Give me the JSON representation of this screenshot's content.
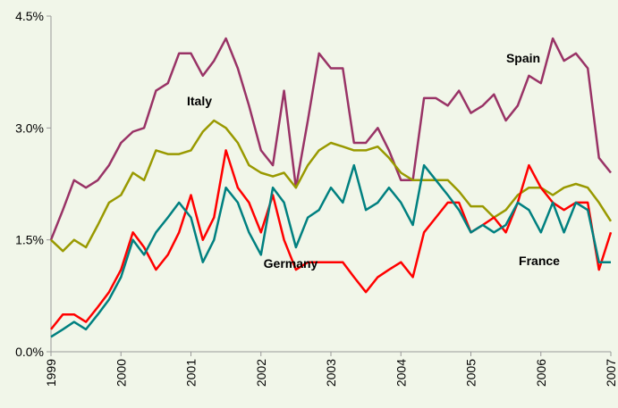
{
  "chart_data": {
    "type": "line",
    "x": [
      1999,
      1999.17,
      1999.33,
      1999.5,
      1999.67,
      1999.83,
      2000,
      2000.17,
      2000.33,
      2000.5,
      2000.67,
      2000.83,
      2001,
      2001.17,
      2001.33,
      2001.5,
      2001.67,
      2001.83,
      2002,
      2002.17,
      2002.33,
      2002.5,
      2002.67,
      2002.83,
      2003,
      2003.17,
      2003.33,
      2003.5,
      2003.67,
      2003.83,
      2004,
      2004.17,
      2004.33,
      2004.5,
      2004.67,
      2004.83,
      2005,
      2005.17,
      2005.33,
      2005.5,
      2005.67,
      2005.83,
      2006,
      2006.17,
      2006.33,
      2006.5,
      2006.67,
      2006.83,
      2007
    ],
    "xlim": [
      1999,
      2007
    ],
    "xticks": [
      1999,
      2000,
      2001,
      2002,
      2003,
      2004,
      2005,
      2006,
      2007
    ],
    "ylim": [
      0,
      4.5
    ],
    "yticks": [
      {
        "value": 0,
        "label": "0.0%"
      },
      {
        "value": 1.5,
        "label": "1.5%"
      },
      {
        "value": 3,
        "label": "3.0%"
      },
      {
        "value": 4.5,
        "label": "4.5%"
      }
    ],
    "grid": false,
    "series": [
      {
        "name": "Spain",
        "color": "#993366",
        "values": [
          1.5,
          1.9,
          2.3,
          2.2,
          2.3,
          2.5,
          2.8,
          2.95,
          3.0,
          3.5,
          3.6,
          4.0,
          4.0,
          3.7,
          3.9,
          4.2,
          3.8,
          3.3,
          2.7,
          2.5,
          3.5,
          2.2,
          3.1,
          4.0,
          3.8,
          3.8,
          2.8,
          2.8,
          3.0,
          2.7,
          2.3,
          2.3,
          3.4,
          3.4,
          3.3,
          3.5,
          3.2,
          3.3,
          3.45,
          3.1,
          3.3,
          3.7,
          3.6,
          4.2,
          3.9,
          4.0,
          3.8,
          2.6,
          2.4
        ]
      },
      {
        "name": "Italy",
        "color": "#999900",
        "values": [
          1.5,
          1.35,
          1.5,
          1.4,
          1.7,
          2.0,
          2.1,
          2.4,
          2.3,
          2.7,
          2.65,
          2.65,
          2.7,
          2.95,
          3.1,
          3.0,
          2.8,
          2.5,
          2.4,
          2.35,
          2.4,
          2.2,
          2.5,
          2.7,
          2.8,
          2.75,
          2.7,
          2.7,
          2.75,
          2.6,
          2.4,
          2.3,
          2.3,
          2.3,
          2.3,
          2.15,
          1.95,
          1.95,
          1.8,
          1.9,
          2.1,
          2.2,
          2.2,
          2.1,
          2.2,
          2.25,
          2.2,
          2.0,
          1.75
        ]
      },
      {
        "name": "Germany",
        "color": "#ff0000",
        "values": [
          0.3,
          0.5,
          0.5,
          0.4,
          0.6,
          0.8,
          1.1,
          1.6,
          1.4,
          1.1,
          1.3,
          1.6,
          2.1,
          1.5,
          1.8,
          2.7,
          2.2,
          2.0,
          1.6,
          2.1,
          1.5,
          1.1,
          1.2,
          1.2,
          1.2,
          1.2,
          1.0,
          0.8,
          1.0,
          1.1,
          1.2,
          1.0,
          1.6,
          1.8,
          2.0,
          2.0,
          1.6,
          1.7,
          1.8,
          1.6,
          2.0,
          2.5,
          2.2,
          2.0,
          1.9,
          2.0,
          2.0,
          1.1,
          1.6
        ]
      },
      {
        "name": "France",
        "color": "#008080",
        "values": [
          0.2,
          0.3,
          0.4,
          0.3,
          0.5,
          0.7,
          1.0,
          1.5,
          1.3,
          1.6,
          1.8,
          2.0,
          1.8,
          1.2,
          1.5,
          2.2,
          2.0,
          1.6,
          1.3,
          2.2,
          2.0,
          1.4,
          1.8,
          1.9,
          2.2,
          2.0,
          2.5,
          1.9,
          2.0,
          2.2,
          2.0,
          1.7,
          2.5,
          2.3,
          2.1,
          1.9,
          1.6,
          1.7,
          1.6,
          1.7,
          2.0,
          1.9,
          1.6,
          2.0,
          1.6,
          2.0,
          1.9,
          1.2,
          1.2
        ]
      }
    ]
  }
}
